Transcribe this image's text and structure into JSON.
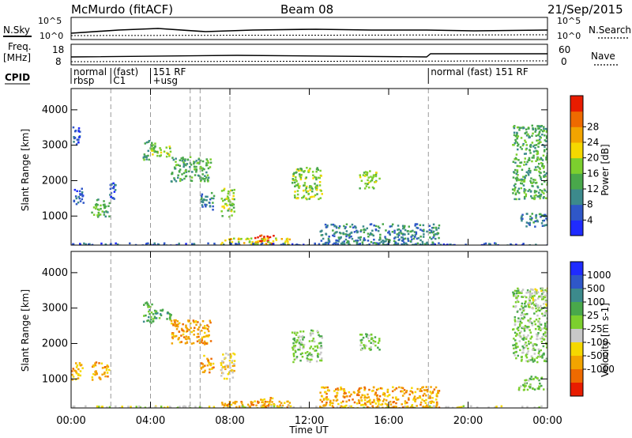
{
  "header": {
    "station": "McMurdo (fitACF)",
    "beam": "Beam 08",
    "date": "21/Sep/2015"
  },
  "sidepanel": {
    "nsky_label": "N.Sky",
    "nsky_top": "10^5",
    "nsky_bottom": "10^0",
    "nsearch_label": "N.Search",
    "nsearch_top": "10^5",
    "nsearch_bottom": "10^0",
    "freq_label": "Freq.",
    "freq_unit": "[MHz]",
    "freq_top": "18",
    "freq_bottom": "8",
    "nave_label": "Nave",
    "nave_top": "60",
    "nave_bottom": "0",
    "cpid_label": "CPID"
  },
  "cpid_segments": [
    {
      "line1": "normal",
      "line2": "rbsp",
      "start": 0
    },
    {
      "line1": "(fast)",
      "line2": "C1",
      "start": 2
    },
    {
      "line1": "151 RF",
      "line2": "+usg",
      "start": 4
    },
    {
      "line1": "normal (fast) 151 RF",
      "line2": "",
      "start": 18
    }
  ],
  "chart_data": [
    {
      "type": "heatmap",
      "name": "power",
      "ylabel": "Slant Range [km]",
      "xlabel": "",
      "x_ticks": [
        "00:00",
        "04:00",
        "08:00",
        "12:00",
        "16:00",
        "20:00",
        "00:00"
      ],
      "x_range_hours": [
        0,
        24
      ],
      "y_range_km": [
        180,
        4600
      ],
      "y_ticks": [
        1000,
        2000,
        3000,
        4000
      ],
      "colorbar": {
        "label": "Power [dB]",
        "ticks": [
          "4",
          "8",
          "12",
          "16",
          "20",
          "24",
          "28"
        ],
        "colors": [
          "#1f2bff",
          "#2f57c8",
          "#3c8a8c",
          "#49a84b",
          "#7ccf2e",
          "#f5d800",
          "#f2a400",
          "#ee6a00",
          "#e81c00"
        ]
      },
      "dashed_lines_hours": [
        2.0,
        4.0,
        6.0,
        6.5,
        8.0,
        18.0
      ],
      "clusters": [
        {
          "t0": 0.0,
          "t1": 0.4,
          "r0": 3000,
          "r1": 3600,
          "v": 1
        },
        {
          "t0": 0.1,
          "t1": 0.6,
          "r0": 1300,
          "r1": 1800,
          "v": 1
        },
        {
          "t0": 1.0,
          "t1": 1.9,
          "r0": 1000,
          "r1": 1500,
          "v": 3
        },
        {
          "t0": 1.9,
          "t1": 2.2,
          "r0": 1500,
          "r1": 2000,
          "v": 1
        },
        {
          "t0": 3.6,
          "t1": 4.2,
          "r0": 2600,
          "r1": 3200,
          "v": 3
        },
        {
          "t0": 4.0,
          "t1": 5.0,
          "r0": 2700,
          "r1": 3000,
          "v": 4
        },
        {
          "t0": 5.0,
          "t1": 7.0,
          "r0": 2000,
          "r1": 2700,
          "v": 3
        },
        {
          "t0": 6.5,
          "t1": 7.2,
          "r0": 1200,
          "r1": 1700,
          "v": 2
        },
        {
          "t0": 7.5,
          "t1": 8.2,
          "r0": 1000,
          "r1": 1800,
          "v": 4
        },
        {
          "t0": 11.1,
          "t1": 12.6,
          "r0": 1500,
          "r1": 2400,
          "v": 4
        },
        {
          "t0": 14.5,
          "t1": 15.5,
          "r0": 1800,
          "r1": 2300,
          "v": 4
        },
        {
          "t0": 22.2,
          "t1": 24.0,
          "r0": 1500,
          "r1": 3600,
          "v": 3
        },
        {
          "t0": 22.5,
          "t1": 24.0,
          "r0": 700,
          "r1": 1100,
          "v": 2
        },
        {
          "t0": 9.2,
          "t1": 10.2,
          "r0": 180,
          "r1": 500,
          "v": 8
        },
        {
          "t0": 7.5,
          "t1": 11.0,
          "r0": 180,
          "r1": 400,
          "v": 5
        },
        {
          "t0": 0.0,
          "t1": 24.0,
          "r0": 180,
          "r1": 260,
          "v": 1
        },
        {
          "t0": 12.5,
          "t1": 18.5,
          "r0": 200,
          "r1": 800,
          "v": 2
        }
      ]
    },
    {
      "type": "heatmap",
      "name": "velocity",
      "ylabel": "Slant Range [km]",
      "xlabel": "Time UT",
      "x_ticks": [
        "00:00",
        "04:00",
        "08:00",
        "12:00",
        "16:00",
        "20:00",
        "00:00"
      ],
      "x_range_hours": [
        0,
        24
      ],
      "y_range_km": [
        180,
        4600
      ],
      "y_ticks": [
        1000,
        2000,
        3000,
        4000
      ],
      "colorbar": {
        "label": "Velocity [m s-1]",
        "ticks": [
          "1000",
          "500",
          "100",
          "25",
          "-25",
          "-100",
          "-500",
          "-1000"
        ],
        "colors": [
          "#1f2bff",
          "#2f57c8",
          "#3c8a8c",
          "#49a84b",
          "#7ccf2e",
          "#c8c8c8",
          "#f5d800",
          "#f2a400",
          "#ee6a00",
          "#e81c00"
        ]
      },
      "dashed_lines_hours": [
        2.0,
        4.0,
        6.0,
        6.5,
        8.0,
        18.0
      ],
      "clusters": [
        {
          "t0": 0.0,
          "t1": 0.6,
          "r0": 1000,
          "r1": 1500,
          "v": 7
        },
        {
          "t0": 1.0,
          "t1": 1.9,
          "r0": 1000,
          "r1": 1500,
          "v": 7
        },
        {
          "t0": 3.6,
          "t1": 4.2,
          "r0": 2600,
          "r1": 3200,
          "v": 3
        },
        {
          "t0": 4.0,
          "t1": 5.0,
          "r0": 2700,
          "r1": 3000,
          "v": 3
        },
        {
          "t0": 5.0,
          "t1": 7.0,
          "r0": 2000,
          "r1": 2700,
          "v": 7
        },
        {
          "t0": 6.5,
          "t1": 7.2,
          "r0": 1200,
          "r1": 1700,
          "v": 7
        },
        {
          "t0": 7.5,
          "t1": 8.2,
          "r0": 1000,
          "r1": 1800,
          "v": 6
        },
        {
          "t0": 11.1,
          "t1": 12.6,
          "r0": 1500,
          "r1": 2400,
          "v": 4
        },
        {
          "t0": 14.5,
          "t1": 15.5,
          "r0": 1800,
          "r1": 2300,
          "v": 4
        },
        {
          "t0": 22.2,
          "t1": 24.0,
          "r0": 1500,
          "r1": 3600,
          "v": 4
        },
        {
          "t0": 23.0,
          "t1": 24.0,
          "r0": 3000,
          "r1": 3600,
          "v": 5
        },
        {
          "t0": 22.5,
          "t1": 24.0,
          "r0": 700,
          "r1": 1100,
          "v": 4
        },
        {
          "t0": 9.2,
          "t1": 10.2,
          "r0": 180,
          "r1": 500,
          "v": 7
        },
        {
          "t0": 7.5,
          "t1": 11.0,
          "r0": 180,
          "r1": 400,
          "v": 7
        },
        {
          "t0": 0.0,
          "t1": 24.0,
          "r0": 180,
          "r1": 260,
          "v": 5
        },
        {
          "t0": 12.5,
          "t1": 18.5,
          "r0": 200,
          "r1": 800,
          "v": 7
        }
      ]
    }
  ]
}
